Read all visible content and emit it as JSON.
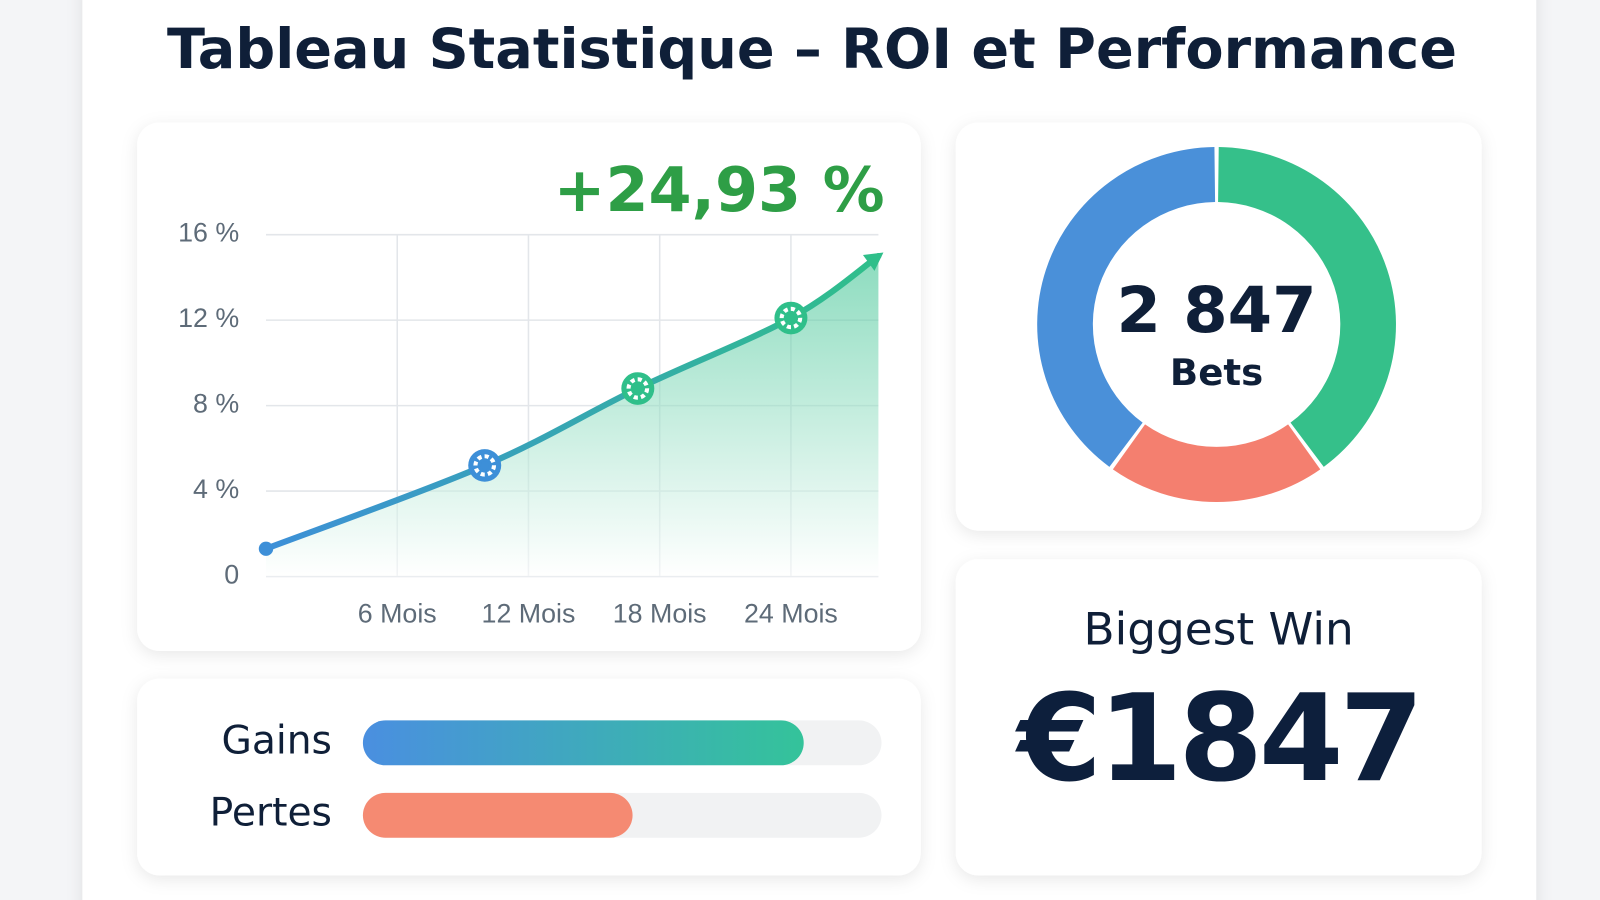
{
  "title": "Tableau Statistique – ROI et Performance",
  "chart_data": [
    {
      "type": "line",
      "annotation": "+24,93 %",
      "x": [
        0,
        10,
        17,
        24,
        28
      ],
      "values": [
        1.3,
        5.2,
        8.8,
        12.1,
        15
      ],
      "colors": [
        "#3d8fd8",
        "#2fbf8a"
      ],
      "xlim": [
        0,
        28
      ],
      "xticks": [
        {
          "value": 6,
          "label": "6 Mois"
        },
        {
          "value": 12,
          "label": "12 Mois"
        },
        {
          "value": 18,
          "label": "18 Mois"
        },
        {
          "value": 24,
          "label": "24 Mois"
        }
      ],
      "ylim": [
        0,
        16
      ],
      "yticks": [
        0,
        {
          "value": 4,
          "label": "4 %"
        },
        {
          "value": 8,
          "label": "8 %"
        },
        {
          "value": 12,
          "label": "12 %"
        },
        {
          "value": 16,
          "label": "16 %"
        }
      ],
      "grid": true
    },
    {
      "type": "donut",
      "values": [
        40,
        20,
        40
      ],
      "colors": [
        "#35c08a",
        "#f47f6f",
        "#4a90d9"
      ],
      "center_value": "2 847",
      "center_label": "Bets"
    },
    {
      "type": "hbar",
      "categories": [
        "Gains",
        "Pertes"
      ],
      "values": [
        85,
        52
      ],
      "colors": [
        [
          "#4a8fe0",
          "#34c39a"
        ],
        [
          "#f58a72",
          "#f58a72"
        ]
      ],
      "xlim": [
        0,
        100
      ]
    }
  ],
  "biggest_win": {
    "label": "Biggest Win",
    "value": "€1847"
  }
}
